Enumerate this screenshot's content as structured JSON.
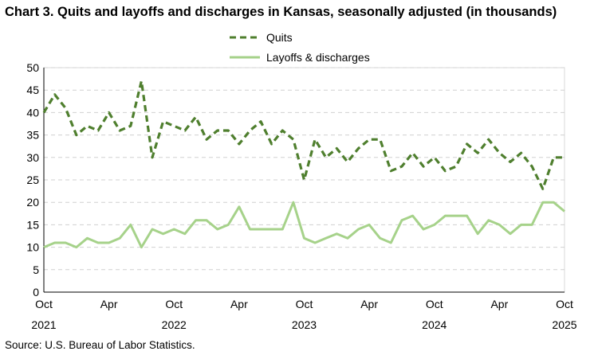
{
  "chart_data": {
    "type": "line",
    "title": "Chart 3. Quits and layoffs and discharges in Kansas, seasonally adjusted (in thousands)",
    "xlabel": "",
    "ylabel": "",
    "ylim": [
      0,
      50
    ],
    "yticks": [
      0,
      5,
      10,
      15,
      20,
      25,
      30,
      35,
      40,
      45,
      50
    ],
    "xtick_labels": [
      {
        "month": "Oct",
        "year": "2021"
      },
      {
        "month": "Apr",
        "year": ""
      },
      {
        "month": "Oct",
        "year": "2022"
      },
      {
        "month": "Apr",
        "year": ""
      },
      {
        "month": "Oct",
        "year": "2023"
      },
      {
        "month": "Apr",
        "year": ""
      },
      {
        "month": "Oct",
        "year": "2024"
      },
      {
        "month": "Apr",
        "year": ""
      },
      {
        "month": "Oct",
        "year": "2025"
      }
    ],
    "x_range": [
      "Oct 2021",
      "Oct 2025"
    ],
    "grid": "horizontal dashed",
    "legend_placement": "top-center",
    "series": [
      {
        "name": "Quits",
        "color": "#4f7f2e",
        "style": "dashed",
        "values": [
          40,
          44,
          41,
          35,
          37,
          36,
          40,
          36,
          37,
          47,
          30,
          38,
          37,
          36,
          39,
          34,
          36,
          36,
          33,
          36,
          38,
          33,
          36,
          34,
          25,
          34,
          30,
          32,
          29,
          32,
          34,
          34,
          27,
          28,
          31,
          28,
          30,
          27,
          28,
          33,
          31,
          34,
          31,
          29,
          31,
          28,
          23,
          30,
          30
        ]
      },
      {
        "name": "Layoffs & discharges",
        "color": "#a6d28a",
        "style": "solid",
        "values": [
          10,
          11,
          11,
          10,
          12,
          11,
          11,
          12,
          15,
          10,
          14,
          13,
          14,
          13,
          16,
          16,
          14,
          15,
          19,
          14,
          14,
          14,
          14,
          20,
          12,
          11,
          12,
          13,
          12,
          14,
          15,
          12,
          11,
          16,
          17,
          14,
          15,
          17,
          17,
          17,
          13,
          16,
          15,
          13,
          15,
          15,
          20,
          20,
          18
        ]
      }
    ],
    "source": "Source: U.S. Bureau of Labor Statistics."
  }
}
